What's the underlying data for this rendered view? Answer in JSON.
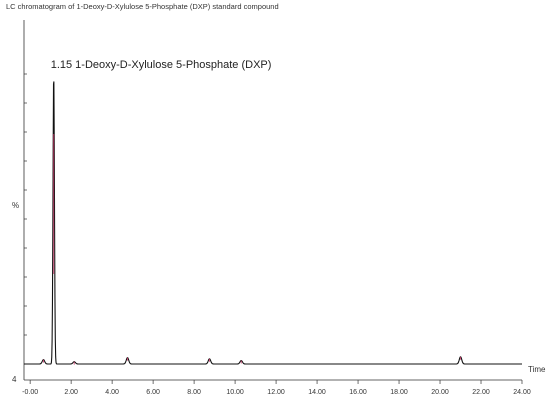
{
  "title": "LC chromatogram of 1-Deoxy-D-Xylulose 5-Phosphate (DXP) standard compound",
  "chart_data": {
    "type": "line",
    "title": "LC chromatogram of 1-Deoxy-D-Xylulose 5-Phosphate (DXP) standard compound",
    "xlabel": "Time",
    "ylabel": "%",
    "xlim": [
      -0.3,
      24.0
    ],
    "ylim": [
      0,
      100
    ],
    "y_min_label": "4",
    "x_ticks": [
      -0.0,
      2.0,
      4.0,
      6.0,
      8.0,
      10.0,
      12.0,
      14.0,
      16.0,
      18.0,
      20.0,
      22.0,
      24.0
    ],
    "x_tick_labels": [
      "-0.00",
      "2.00",
      "4.00",
      "6.00",
      "8.00",
      "10.00",
      "12.00",
      "14.00",
      "16.00",
      "18.00",
      "20.00",
      "22.00",
      "24.00"
    ],
    "y_ticks": [
      10,
      20,
      30,
      40,
      50,
      60,
      70,
      80,
      90,
      100
    ],
    "grid": false,
    "annotations": [
      {
        "x": 1.15,
        "y": 100,
        "text": "1.15 1-Deoxy-D-Xylulose 5-Phosphate (DXP)"
      }
    ],
    "peaks": [
      {
        "rt": 0.65,
        "height": 1.5
      },
      {
        "rt": 1.15,
        "height": 100
      },
      {
        "rt": 2.15,
        "height": 0.8
      },
      {
        "rt": 4.75,
        "height": 2.2
      },
      {
        "rt": 8.75,
        "height": 1.8
      },
      {
        "rt": 10.3,
        "height": 1.2
      },
      {
        "rt": 21.0,
        "height": 2.5
      }
    ],
    "series": [
      {
        "color": "#111111",
        "trace_color": "#cc3366"
      }
    ]
  }
}
